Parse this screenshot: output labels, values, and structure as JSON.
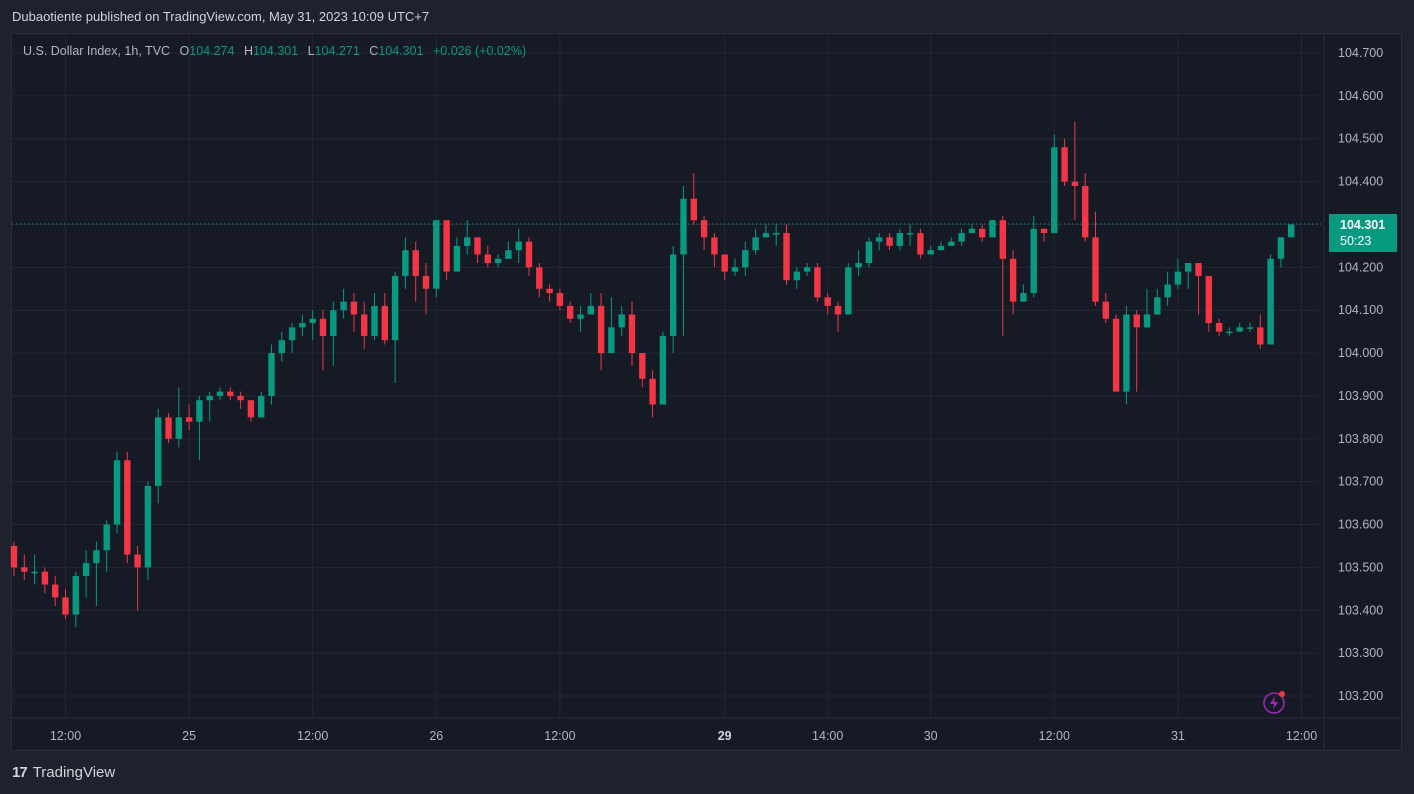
{
  "publish_line": "Dubaotiente published on TradingView.com, May 31, 2023 10:09 UTC+7",
  "legend": {
    "symbol": "U.S. Dollar Index, 1h, TVC",
    "o_label": "O",
    "o_value": "104.274",
    "h_label": "H",
    "h_value": "104.301",
    "l_label": "L",
    "l_value": "104.271",
    "c_label": "C",
    "c_value": "104.301",
    "change": "+0.026 (+0.02%)"
  },
  "price_tag": {
    "price": "104.301",
    "countdown": "50:23"
  },
  "footer": {
    "brand": "TradingView",
    "mark": "17"
  },
  "colors": {
    "up": "#089981",
    "down": "#f23645",
    "grid": "#232734",
    "text": "#b2b5be",
    "background": "#161a25"
  },
  "chart_data": {
    "type": "candlestick",
    "ylim": [
      103.15,
      104.73
    ],
    "y_ticks": [
      "104.700",
      "104.600",
      "104.500",
      "104.400",
      "104.300",
      "104.200",
      "104.100",
      "104.000",
      "103.900",
      "103.800",
      "103.700",
      "103.600",
      "103.500",
      "103.400",
      "103.300",
      "103.200"
    ],
    "x_ticks": [
      {
        "label": "12:00",
        "index": 5
      },
      {
        "label": "25",
        "index": 17
      },
      {
        "label": "12:00",
        "index": 29
      },
      {
        "label": "26",
        "index": 41
      },
      {
        "label": "12:00",
        "index": 53
      },
      {
        "label": "29",
        "index": 69
      },
      {
        "label": "14:00",
        "index": 79
      },
      {
        "label": "30",
        "index": 89
      },
      {
        "label": "12:00",
        "index": 101
      },
      {
        "label": "31",
        "index": 113
      },
      {
        "label": "12:00",
        "index": 125
      }
    ],
    "last_price_line": 104.301,
    "candles": [
      [
        103.55,
        103.5,
        103.56,
        103.48
      ],
      [
        103.5,
        103.49,
        103.53,
        103.47
      ],
      [
        103.49,
        103.49,
        103.53,
        103.46
      ],
      [
        103.49,
        103.46,
        103.5,
        103.44
      ],
      [
        103.46,
        103.43,
        103.48,
        103.41
      ],
      [
        103.43,
        103.39,
        103.45,
        103.38
      ],
      [
        103.39,
        103.48,
        103.49,
        103.36
      ],
      [
        103.48,
        103.51,
        103.54,
        103.43
      ],
      [
        103.51,
        103.54,
        103.56,
        103.41
      ],
      [
        103.54,
        103.6,
        103.61,
        103.49
      ],
      [
        103.6,
        103.75,
        103.77,
        103.58
      ],
      [
        103.75,
        103.53,
        103.77,
        103.51
      ],
      [
        103.53,
        103.5,
        103.55,
        103.4
      ],
      [
        103.5,
        103.69,
        103.7,
        103.47
      ],
      [
        103.69,
        103.85,
        103.87,
        103.65
      ],
      [
        103.85,
        103.8,
        103.86,
        103.79
      ],
      [
        103.8,
        103.85,
        103.92,
        103.78
      ],
      [
        103.85,
        103.84,
        103.88,
        103.82
      ],
      [
        103.84,
        103.89,
        103.9,
        103.75
      ],
      [
        103.89,
        103.9,
        103.91,
        103.84
      ],
      [
        103.9,
        103.91,
        103.92,
        103.89
      ],
      [
        103.91,
        103.9,
        103.92,
        103.89
      ],
      [
        103.9,
        103.89,
        103.91,
        103.87
      ],
      [
        103.89,
        103.85,
        103.89,
        103.84
      ],
      [
        103.85,
        103.9,
        103.91,
        103.85
      ],
      [
        103.9,
        104.0,
        104.02,
        103.88
      ],
      [
        104.0,
        104.03,
        104.05,
        103.98
      ],
      [
        104.03,
        104.06,
        104.07,
        104.0
      ],
      [
        104.06,
        104.07,
        104.09,
        104.04
      ],
      [
        104.07,
        104.08,
        104.1,
        104.03
      ],
      [
        104.08,
        104.04,
        104.1,
        103.96
      ],
      [
        104.04,
        104.1,
        104.12,
        103.97
      ],
      [
        104.1,
        104.12,
        104.15,
        104.08
      ],
      [
        104.12,
        104.09,
        104.14,
        104.05
      ],
      [
        104.09,
        104.04,
        104.12,
        104.01
      ],
      [
        104.04,
        104.11,
        104.14,
        104.03
      ],
      [
        104.11,
        104.03,
        104.14,
        104.02
      ],
      [
        104.03,
        104.18,
        104.19,
        103.93
      ],
      [
        104.18,
        104.24,
        104.27,
        104.15
      ],
      [
        104.24,
        104.18,
        104.26,
        104.12
      ],
      [
        104.18,
        104.15,
        104.21,
        104.09
      ],
      [
        104.15,
        104.31,
        104.31,
        104.13
      ],
      [
        104.31,
        104.19,
        104.3,
        104.17
      ],
      [
        104.19,
        104.25,
        104.27,
        104.2
      ],
      [
        104.25,
        104.27,
        104.31,
        104.23
      ],
      [
        104.27,
        104.23,
        104.27,
        104.21
      ],
      [
        104.23,
        104.21,
        104.25,
        104.2
      ],
      [
        104.21,
        104.22,
        104.23,
        104.2
      ],
      [
        104.22,
        104.24,
        104.26,
        104.22
      ],
      [
        104.24,
        104.26,
        104.29,
        104.21
      ],
      [
        104.26,
        104.2,
        104.27,
        104.18
      ],
      [
        104.2,
        104.15,
        104.21,
        104.13
      ],
      [
        104.15,
        104.14,
        104.16,
        104.12
      ],
      [
        104.14,
        104.11,
        104.15,
        104.1
      ],
      [
        104.11,
        104.08,
        104.12,
        104.07
      ],
      [
        104.08,
        104.09,
        104.11,
        104.05
      ],
      [
        104.09,
        104.11,
        104.14,
        104.09
      ],
      [
        104.11,
        104.0,
        104.14,
        103.96
      ],
      [
        104.0,
        104.06,
        104.13,
        104.0
      ],
      [
        104.06,
        104.09,
        104.11,
        104.04
      ],
      [
        104.09,
        104.0,
        104.12,
        103.97
      ],
      [
        104.0,
        103.94,
        104.0,
        103.92
      ],
      [
        103.94,
        103.88,
        103.96,
        103.85
      ],
      [
        103.88,
        104.04,
        104.05,
        103.89
      ],
      [
        104.04,
        104.23,
        104.25,
        104.0
      ],
      [
        104.23,
        104.36,
        104.39,
        104.04
      ],
      [
        104.36,
        104.31,
        104.42,
        104.3
      ],
      [
        104.31,
        104.27,
        104.32,
        104.24
      ],
      [
        104.27,
        104.23,
        104.28,
        104.2
      ],
      [
        104.23,
        104.19,
        104.23,
        104.17
      ],
      [
        104.19,
        104.2,
        104.22,
        104.18
      ],
      [
        104.2,
        104.24,
        104.26,
        104.18
      ],
      [
        104.24,
        104.27,
        104.29,
        104.23
      ],
      [
        104.27,
        104.28,
        104.3,
        104.27
      ],
      [
        104.28,
        104.28,
        104.3,
        104.25
      ],
      [
        104.28,
        104.17,
        104.3,
        104.16
      ],
      [
        104.17,
        104.19,
        104.2,
        104.15
      ],
      [
        104.19,
        104.2,
        104.21,
        104.18
      ],
      [
        104.2,
        104.13,
        104.21,
        104.12
      ],
      [
        104.13,
        104.11,
        104.14,
        104.09
      ],
      [
        104.11,
        104.09,
        104.12,
        104.05
      ],
      [
        104.09,
        104.2,
        104.21,
        104.09
      ],
      [
        104.2,
        104.21,
        104.24,
        104.18
      ],
      [
        104.21,
        104.26,
        104.27,
        104.2
      ],
      [
        104.26,
        104.27,
        104.28,
        104.24
      ],
      [
        104.27,
        104.25,
        104.28,
        104.24
      ],
      [
        104.25,
        104.28,
        104.29,
        104.24
      ],
      [
        104.28,
        104.28,
        104.3,
        104.25
      ],
      [
        104.28,
        104.23,
        104.29,
        104.22
      ],
      [
        104.23,
        104.24,
        104.25,
        104.23
      ],
      [
        104.24,
        104.25,
        104.26,
        104.24
      ],
      [
        104.25,
        104.26,
        104.27,
        104.25
      ],
      [
        104.26,
        104.28,
        104.29,
        104.25
      ],
      [
        104.28,
        104.29,
        104.3,
        104.28
      ],
      [
        104.29,
        104.27,
        104.3,
        104.26
      ],
      [
        104.27,
        104.31,
        104.31,
        104.27
      ],
      [
        104.31,
        104.22,
        104.32,
        104.04
      ],
      [
        104.22,
        104.12,
        104.24,
        104.09
      ],
      [
        104.12,
        104.14,
        104.16,
        104.13
      ],
      [
        104.14,
        104.29,
        104.32,
        104.13
      ],
      [
        104.29,
        104.28,
        104.29,
        104.26
      ],
      [
        104.28,
        104.48,
        104.51,
        104.28
      ],
      [
        104.48,
        104.4,
        104.5,
        104.39
      ],
      [
        104.4,
        104.39,
        104.54,
        104.31
      ],
      [
        104.39,
        104.27,
        104.42,
        104.26
      ],
      [
        104.27,
        104.12,
        104.33,
        104.11
      ],
      [
        104.12,
        104.08,
        104.14,
        104.07
      ],
      [
        104.08,
        103.91,
        104.09,
        103.91
      ],
      [
        103.91,
        104.09,
        104.11,
        103.88
      ],
      [
        104.09,
        104.06,
        104.1,
        103.91
      ],
      [
        104.06,
        104.09,
        104.15,
        104.06
      ],
      [
        104.09,
        104.13,
        104.15,
        104.12
      ],
      [
        104.13,
        104.16,
        104.19,
        104.11
      ],
      [
        104.16,
        104.19,
        104.22,
        104.15
      ],
      [
        104.19,
        104.21,
        104.21,
        104.15
      ],
      [
        104.21,
        104.18,
        104.2,
        104.09
      ],
      [
        104.18,
        104.07,
        104.18,
        104.05
      ],
      [
        104.07,
        104.05,
        104.08,
        104.04
      ],
      [
        104.05,
        104.05,
        104.06,
        104.04
      ],
      [
        104.05,
        104.06,
        104.07,
        104.05
      ],
      [
        104.06,
        104.06,
        104.07,
        104.05
      ],
      [
        104.06,
        104.02,
        104.09,
        104.01
      ],
      [
        104.02,
        104.22,
        104.23,
        104.02
      ],
      [
        104.22,
        104.27,
        104.27,
        104.2
      ],
      [
        104.27,
        104.3,
        104.3,
        104.27
      ]
    ]
  }
}
